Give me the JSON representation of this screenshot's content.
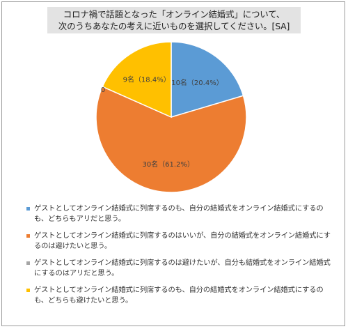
{
  "title_lines": [
    "コロナ禍で話題となった「オンライン結婚式」について、",
    "次のうちあなたの考えに近いものを選択してください。[SA]"
  ],
  "chart_data": {
    "type": "pie",
    "title": "コロナ禍で話題となった「オンライン結婚式」について、次のうちあなたの考えに近いものを選択してください。[SA]",
    "categories": [
      "ゲストとしてオンライン結婚式に列席するのも、自分の結婚式をオンライン結婚式にするのも、どちらもアリだと思う。",
      "ゲストとしてオンライン結婚式に列席するのはいいが、自分の結婚式をオンライン結婚式にするのは避けたいと思う。",
      "ゲストとしてオンライン結婚式に列席するのは避けたいが、自分も結婚式をオンライン結婚式にするのはアリだと思う。",
      "ゲストとしてオンライン結婚式に列席するのも、自分の結婚式をオンライン結婚式にするのも、どちらも避けたいと思う。"
    ],
    "values": [
      10,
      30,
      0,
      9
    ],
    "percentages": [
      20.4,
      61.2,
      0,
      18.4
    ],
    "data_labels": [
      "10名（20.4%）",
      "30名（61.2%）",
      "0",
      "9名（18.4%）"
    ],
    "colors": [
      "#5B9BD5",
      "#ED7D31",
      "#A5A5A5",
      "#FFC000"
    ],
    "legend_position": "bottom",
    "start_angle_deg": 0,
    "direction": "clockwise"
  }
}
